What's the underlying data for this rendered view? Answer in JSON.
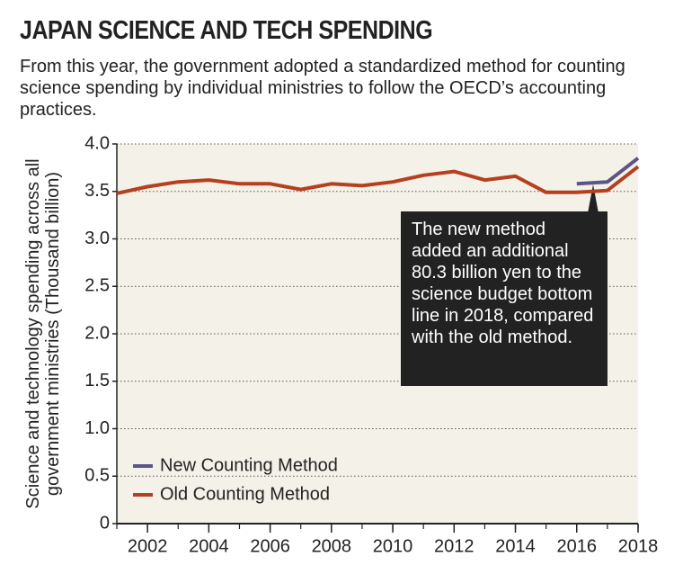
{
  "chart_data": {
    "type": "line",
    "title": "JAPAN SCIENCE AND TECH SPENDING",
    "subtitle": "From this year, the government adopted a standardized method for counting science spending by individual ministries to follow the OECD’s accounting practices.",
    "y_label": "Science and technology spending across all government ministries (Thousand billion)",
    "annotation": "The new method added an additional 80.3 billion yen to the science budget bottom line in 2018, compared with the old method.",
    "x": [
      2001,
      2002,
      2003,
      2004,
      2005,
      2006,
      2007,
      2008,
      2009,
      2010,
      2011,
      2012,
      2013,
      2014,
      2015,
      2016,
      2017,
      2018
    ],
    "series": [
      {
        "name": "New Counting Method",
        "color": "#5b5587",
        "values": [
          null,
          null,
          null,
          null,
          null,
          null,
          null,
          null,
          null,
          null,
          null,
          null,
          null,
          null,
          null,
          3.58,
          3.6,
          3.85
        ]
      },
      {
        "name": "Old Counting Method",
        "color": "#b5401f",
        "values": [
          3.48,
          3.55,
          3.6,
          3.62,
          3.58,
          3.58,
          3.52,
          3.58,
          3.56,
          3.6,
          3.67,
          3.71,
          3.62,
          3.66,
          3.49,
          3.49,
          3.51,
          3.76
        ]
      }
    ],
    "xlim": [
      2001,
      2018
    ],
    "xticks": [
      2002,
      2004,
      2006,
      2008,
      2010,
      2012,
      2014,
      2016,
      2018
    ],
    "ylim": [
      0,
      4
    ],
    "yticks": [
      0,
      0.5,
      {
        "value": 1,
        "label": "1.0"
      },
      1.5,
      {
        "value": 2,
        "label": "2.0"
      },
      2.5,
      {
        "value": 3,
        "label": "3.0"
      },
      3.5,
      {
        "value": 4,
        "label": "4.0"
      }
    ],
    "grid": true,
    "legend": "lower left"
  }
}
